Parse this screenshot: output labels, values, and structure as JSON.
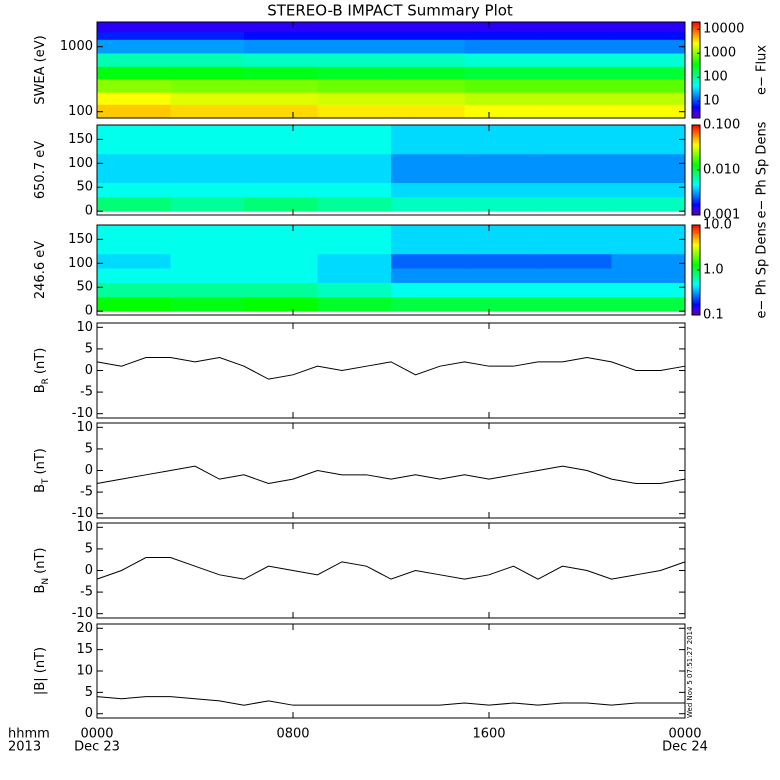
{
  "title": "STEREO-B IMPACT Summary Plot",
  "footer": {
    "time_format": "hhmm",
    "year": "2013",
    "start_date": "Dec 23",
    "end_date": "Dec 24",
    "timestamp": "Wed Nov  5 07:51:27 2014"
  },
  "chart_data": [
    {
      "type": "heatmap",
      "ylabel": "SWEA (eV)",
      "colorbar_label": "e− Flux",
      "ylog": true,
      "clog": true,
      "x_bins": [
        0,
        3,
        6,
        9,
        12,
        15,
        18,
        21,
        24
      ],
      "y_bins": [
        80,
        130,
        200,
        320,
        500,
        800,
        1300,
        1700,
        2400
      ],
      "z": [
        [
          4000,
          3500,
          3500,
          3000,
          3000,
          2500,
          2500,
          2500
        ],
        [
          2500,
          2000,
          2000,
          1800,
          1800,
          1500,
          1500,
          1500
        ],
        [
          1000,
          900,
          900,
          800,
          800,
          700,
          700,
          700
        ],
        [
          300,
          300,
          280,
          250,
          250,
          220,
          220,
          220
        ],
        [
          80,
          80,
          70,
          70,
          70,
          60,
          60,
          60
        ],
        [
          20,
          20,
          18,
          18,
          18,
          16,
          16,
          16
        ],
        [
          7,
          7,
          6,
          6,
          6,
          6,
          6,
          6
        ],
        [
          4,
          4,
          4,
          4,
          4,
          4,
          4,
          4
        ]
      ],
      "xlim": [
        0,
        24
      ],
      "ylim": [
        80,
        2400
      ],
      "yticks": [
        100,
        1000
      ],
      "clim": [
        2,
        20000
      ],
      "cticks": [
        10,
        100,
        1000,
        10000
      ]
    },
    {
      "type": "heatmap",
      "ylabel": "650.7 eV",
      "colorbar_label": "e− Ph Sp Dens",
      "ylog": false,
      "clog": true,
      "x_bins": [
        0,
        3,
        6,
        9,
        12,
        15,
        18,
        21,
        24
      ],
      "y_bins": [
        0,
        30,
        60,
        90,
        120,
        150,
        180
      ],
      "z": [
        [
          0.008,
          0.007,
          0.008,
          0.007,
          0.006,
          0.006,
          0.006,
          0.006
        ],
        [
          0.005,
          0.005,
          0.005,
          0.005,
          0.004,
          0.004,
          0.004,
          0.004
        ],
        [
          0.004,
          0.004,
          0.004,
          0.004,
          0.003,
          0.003,
          0.003,
          0.003
        ],
        [
          0.004,
          0.004,
          0.004,
          0.004,
          0.003,
          0.003,
          0.003,
          0.003
        ],
        [
          0.005,
          0.005,
          0.005,
          0.005,
          0.004,
          0.004,
          0.004,
          0.004
        ],
        [
          0.005,
          0.005,
          0.005,
          0.005,
          0.004,
          0.004,
          0.004,
          0.004
        ]
      ],
      "xlim": [
        0,
        24
      ],
      "ylim": [
        -8,
        180
      ],
      "yticks": [
        0,
        50,
        100,
        150
      ],
      "clim": [
        0.001,
        0.1
      ],
      "cticks": [
        {
          "value": 0.001,
          "label": "0.001"
        },
        {
          "value": 0.01,
          "label": "0.010"
        },
        {
          "value": 0.1,
          "label": "0.100"
        }
      ]
    },
    {
      "type": "heatmap",
      "ylabel": "246.6 eV",
      "colorbar_label": "e− Ph Sp Dens",
      "ylog": false,
      "clog": true,
      "x_bins": [
        0,
        3,
        6,
        9,
        12,
        15,
        18,
        21,
        24
      ],
      "y_bins": [
        0,
        30,
        60,
        90,
        120,
        150,
        180
      ],
      "z": [
        [
          1.3,
          1.2,
          1.3,
          1.1,
          1.0,
          1.0,
          1.0,
          1.0
        ],
        [
          0.7,
          0.7,
          0.7,
          0.6,
          0.5,
          0.5,
          0.5,
          0.5
        ],
        [
          0.5,
          0.5,
          0.5,
          0.4,
          0.3,
          0.3,
          0.3,
          0.3
        ],
        [
          0.4,
          0.5,
          0.5,
          0.4,
          0.25,
          0.25,
          0.25,
          0.3
        ],
        [
          0.5,
          0.5,
          0.5,
          0.5,
          0.4,
          0.4,
          0.4,
          0.4
        ],
        [
          0.5,
          0.5,
          0.5,
          0.5,
          0.4,
          0.4,
          0.4,
          0.4
        ]
      ],
      "xlim": [
        0,
        24
      ],
      "ylim": [
        -8,
        180
      ],
      "yticks": [
        0,
        50,
        100,
        150
      ],
      "clim": [
        0.1,
        10
      ],
      "cticks": [
        {
          "value": 0.1,
          "label": "0.1"
        },
        {
          "value": 1,
          "label": "1.0"
        },
        {
          "value": 10,
          "label": "10.0"
        }
      ]
    },
    {
      "type": "line",
      "ylabel": "B",
      "ylabel_sub": "R",
      "ylabel_unit": "(nT)",
      "color": "#000000",
      "x": [
        0,
        1,
        2,
        3,
        4,
        5,
        6,
        7,
        8,
        9,
        10,
        11,
        12,
        13,
        14,
        15,
        16,
        17,
        18,
        19,
        20,
        21,
        22,
        23,
        24
      ],
      "values": [
        2,
        1,
        3,
        3,
        2,
        3,
        1,
        -2,
        -1,
        1,
        0,
        1,
        2,
        -1,
        1,
        2,
        1,
        1,
        2,
        2,
        3,
        2,
        0,
        0,
        1
      ],
      "xlim": [
        0,
        24
      ],
      "ylim": [
        -11,
        11
      ],
      "yticks": [
        -10,
        -5,
        0,
        5,
        10
      ]
    },
    {
      "type": "line",
      "ylabel": "B",
      "ylabel_sub": "T",
      "ylabel_unit": "(nT)",
      "color": "#000000",
      "x": [
        0,
        1,
        2,
        3,
        4,
        5,
        6,
        7,
        8,
        9,
        10,
        11,
        12,
        13,
        14,
        15,
        16,
        17,
        18,
        19,
        20,
        21,
        22,
        23,
        24
      ],
      "values": [
        -3,
        -2,
        -1,
        0,
        1,
        -2,
        -1,
        -3,
        -2,
        0,
        -1,
        -1,
        -2,
        -1,
        -2,
        -1,
        -2,
        -1,
        0,
        1,
        0,
        -2,
        -3,
        -3,
        -2
      ],
      "xlim": [
        0,
        24
      ],
      "ylim": [
        -11,
        11
      ],
      "yticks": [
        -10,
        -5,
        0,
        5,
        10
      ]
    },
    {
      "type": "line",
      "ylabel": "B",
      "ylabel_sub": "N",
      "ylabel_unit": "(nT)",
      "color": "#000000",
      "x": [
        0,
        1,
        2,
        3,
        4,
        5,
        6,
        7,
        8,
        9,
        10,
        11,
        12,
        13,
        14,
        15,
        16,
        17,
        18,
        19,
        20,
        21,
        22,
        23,
        24
      ],
      "values": [
        -2,
        0,
        3,
        3,
        1,
        -1,
        -2,
        1,
        0,
        -1,
        2,
        1,
        -2,
        0,
        -1,
        -2,
        -1,
        1,
        -2,
        1,
        0,
        -2,
        -1,
        0,
        2
      ],
      "xlim": [
        0,
        24
      ],
      "ylim": [
        -11,
        11
      ],
      "yticks": [
        -10,
        -5,
        0,
        5,
        10
      ]
    },
    {
      "type": "line",
      "ylabel": "|B| (nT)",
      "color": "#000000",
      "x": [
        0,
        1,
        2,
        3,
        4,
        5,
        6,
        7,
        8,
        9,
        10,
        11,
        12,
        13,
        14,
        15,
        16,
        17,
        18,
        19,
        20,
        21,
        22,
        23,
        24
      ],
      "values": [
        4,
        3.5,
        4,
        4,
        3.5,
        3,
        2,
        3,
        2,
        2,
        2,
        2,
        2,
        2,
        2,
        2.5,
        2,
        2.5,
        2,
        2.5,
        2.5,
        2,
        2.5,
        2.5,
        2.5
      ],
      "xlim": [
        0,
        24
      ],
      "ylim": [
        -1,
        21
      ],
      "yticks": [
        0,
        5,
        10,
        15,
        20
      ],
      "xticks": [
        {
          "value": 0,
          "label": "0000"
        },
        {
          "value": 8,
          "label": "0800"
        },
        {
          "value": 16,
          "label": "1600"
        },
        {
          "value": 24,
          "label": "0000"
        }
      ]
    }
  ]
}
